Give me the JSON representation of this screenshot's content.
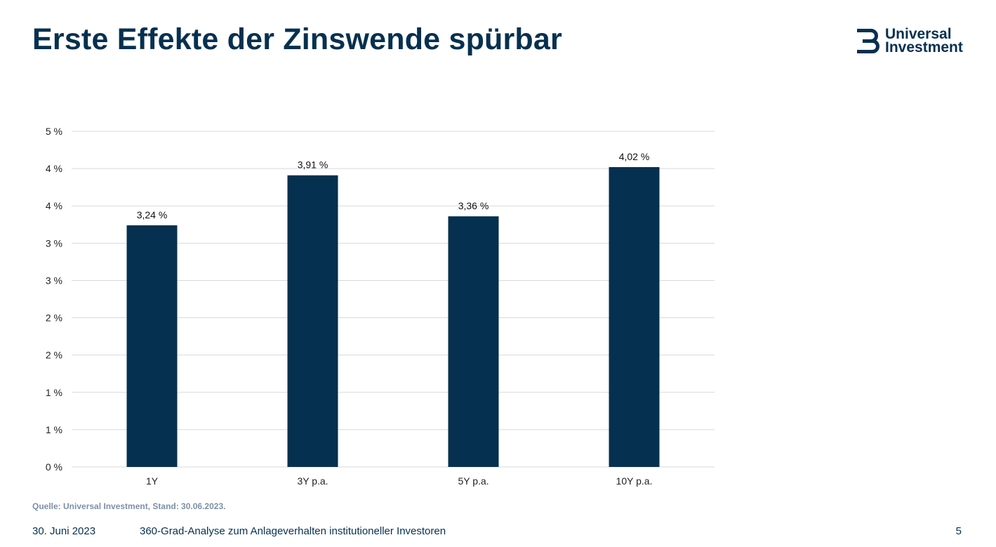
{
  "slide": {
    "title": "Erste Effekte der Zinswende spürbar",
    "source_note": "Quelle: Universal Investment, Stand: 30.06.2023."
  },
  "logo": {
    "line1": "Universal",
    "line2": "Investment",
    "icon": "universal-investment-logo-mark",
    "color": "#06304f"
  },
  "footer": {
    "date": "30. Juni 2023",
    "subject": "360-Grad-Analyse zum Anlageverhalten institutioneller Investoren",
    "page_number": "5"
  },
  "chart_data": {
    "type": "bar",
    "title": "",
    "xlabel": "",
    "ylabel": "",
    "categories": [
      "1Y",
      "3Y p.a.",
      "5Y p.a.",
      "10Y p.a."
    ],
    "values": [
      3.24,
      3.91,
      3.36,
      4.02
    ],
    "value_labels": [
      "3,24 %",
      "3,91 %",
      "3,36 %",
      "4,02 %"
    ],
    "ylim": [
      0,
      4.5
    ],
    "y_ticks": [
      0,
      0.5,
      1,
      1.5,
      2,
      2.5,
      3,
      3.5,
      4,
      4.5
    ],
    "y_tick_labels": [
      "0 %",
      "1 %",
      "1 %",
      "2 %",
      "2 %",
      "3 %",
      "3 %",
      "4 %",
      "4 %",
      "5 %"
    ],
    "grid": true,
    "legend": "none",
    "bar_color": "#06304f",
    "grid_color": "#d9d9d9"
  }
}
